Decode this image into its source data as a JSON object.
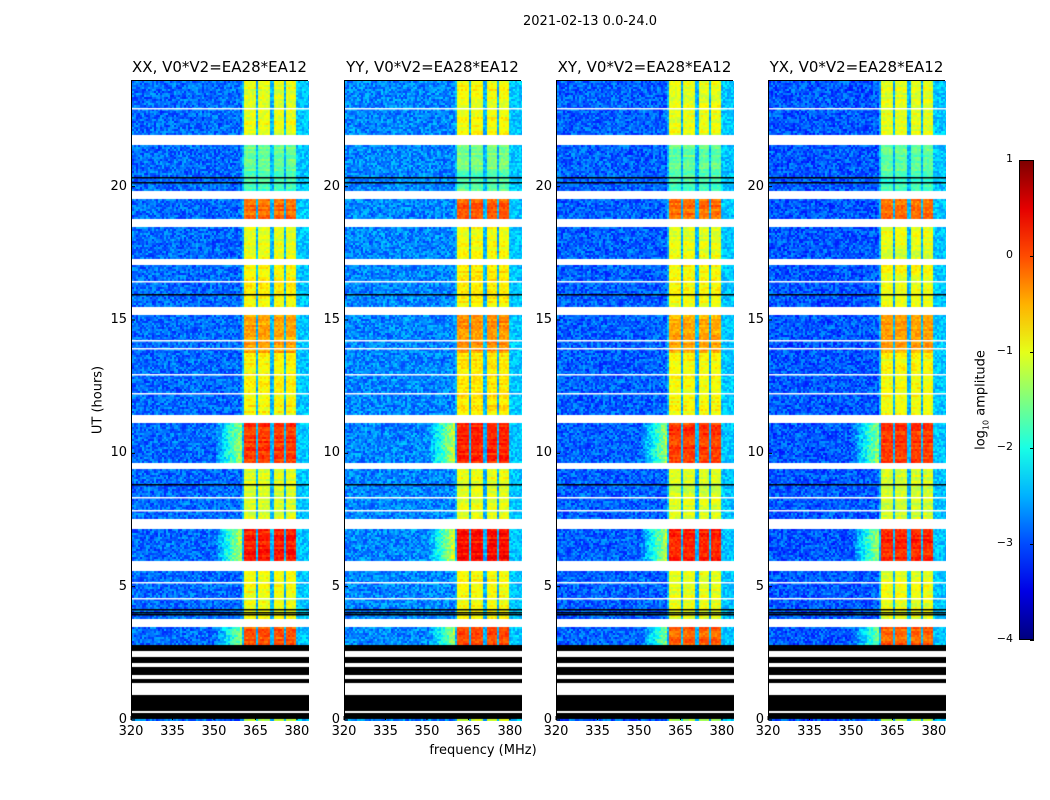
{
  "chart_data": {
    "type": "heatmap",
    "title": "2021-02-13 0.0-24.0",
    "xlabel": "frequency (MHz)",
    "ylabel": "UT (hours)",
    "xlim": [
      320,
      384
    ],
    "ylim": [
      0,
      24
    ],
    "xticks": [
      "320",
      "335",
      "350",
      "365",
      "380"
    ],
    "yticks": [
      "0",
      "5",
      "10",
      "15",
      "20"
    ],
    "colorbar": {
      "label_prefix": "log",
      "label_sub": "10",
      "label_suffix": " amplitude",
      "range": [
        -4,
        1
      ],
      "ticks": [
        "1",
        "0",
        "−1",
        "−2",
        "−3",
        "−4"
      ],
      "colormap": "jet"
    },
    "panels": [
      {
        "title": "XX, V0*V2=EA28*EA12",
        "offset": 0
      },
      {
        "title": "YY, V0*V2=EA28*EA12",
        "offset": 0.15
      },
      {
        "title": "XY, V0*V2=EA28*EA12",
        "offset": -0.05
      },
      {
        "title": "YX, V0*V2=EA28*EA12",
        "offset": -0.1
      }
    ],
    "background_log_amplitude": -3.0,
    "band_columns_mhz": [
      [
        360.4,
        365.1
      ],
      [
        365.8,
        370.2
      ],
      [
        371,
        375.2
      ],
      [
        376,
        379.6
      ]
    ],
    "time_segments": [
      {
        "t": [
          0,
          0.1
        ],
        "kind": "data",
        "level": -1.2
      },
      {
        "t": [
          0.1,
          0.3
        ],
        "kind": "black"
      },
      {
        "t": [
          0.3,
          0.35
        ],
        "kind": "white"
      },
      {
        "t": [
          0.35,
          1.0
        ],
        "kind": "black"
      },
      {
        "t": [
          1.0,
          1.4
        ],
        "kind": "white"
      },
      {
        "t": [
          1.4,
          1.55
        ],
        "kind": "black"
      },
      {
        "t": [
          1.55,
          1.7
        ],
        "kind": "white"
      },
      {
        "t": [
          1.7,
          2.0
        ],
        "kind": "black"
      },
      {
        "t": [
          2.0,
          2.2
        ],
        "kind": "white"
      },
      {
        "t": [
          2.2,
          2.4
        ],
        "kind": "black"
      },
      {
        "t": [
          2.4,
          2.6
        ],
        "kind": "white"
      },
      {
        "t": [
          2.6,
          2.85
        ],
        "kind": "black"
      },
      {
        "t": [
          2.85,
          3.55
        ],
        "kind": "data",
        "level": 0.1
      },
      {
        "t": [
          3.55,
          3.8
        ],
        "kind": "white"
      },
      {
        "t": [
          3.8,
          5.6
        ],
        "kind": "data",
        "level": -0.9
      },
      {
        "t": [
          5.6,
          6.0
        ],
        "kind": "white"
      },
      {
        "t": [
          6.0,
          7.2
        ],
        "kind": "data",
        "level": 0.45
      },
      {
        "t": [
          7.2,
          7.6
        ],
        "kind": "white"
      },
      {
        "t": [
          7.6,
          9.45
        ],
        "kind": "data",
        "level": -1.0
      },
      {
        "t": [
          9.45,
          9.7
        ],
        "kind": "white"
      },
      {
        "t": [
          9.7,
          11.2
        ],
        "kind": "data",
        "level": 0.3
      },
      {
        "t": [
          11.2,
          11.45
        ],
        "kind": "white"
      },
      {
        "t": [
          11.45,
          13.8
        ],
        "kind": "data",
        "level": -0.8
      },
      {
        "t": [
          13.8,
          15.2
        ],
        "kind": "data",
        "level": -0.3
      },
      {
        "t": [
          15.2,
          15.5
        ],
        "kind": "white"
      },
      {
        "t": [
          15.5,
          17.1
        ],
        "kind": "data",
        "level": -0.8
      },
      {
        "t": [
          17.1,
          17.3
        ],
        "kind": "white"
      },
      {
        "t": [
          17.3,
          18.5
        ],
        "kind": "data",
        "level": -0.9
      },
      {
        "t": [
          18.5,
          18.8
        ],
        "kind": "white"
      },
      {
        "t": [
          18.8,
          19.6
        ],
        "kind": "data",
        "level": 0.0
      },
      {
        "t": [
          19.6,
          19.9
        ],
        "kind": "white"
      },
      {
        "t": [
          19.9,
          20.6
        ],
        "kind": "data",
        "level": -1.8
      },
      {
        "t": [
          20.6,
          21.6
        ],
        "kind": "data",
        "level": -1.6
      },
      {
        "t": [
          21.6,
          22.0
        ],
        "kind": "white"
      },
      {
        "t": [
          22.0,
          24.0
        ],
        "kind": "data",
        "level": -0.9
      }
    ],
    "thin_lines": [
      {
        "t": 4.0,
        "kind": "black"
      },
      {
        "t": 4.1,
        "kind": "black"
      },
      {
        "t": 4.2,
        "kind": "black"
      },
      {
        "t": 4.6,
        "kind": "white"
      },
      {
        "t": 5.2,
        "kind": "white"
      },
      {
        "t": 7.9,
        "kind": "white"
      },
      {
        "t": 8.4,
        "kind": "white"
      },
      {
        "t": 8.9,
        "kind": "black"
      },
      {
        "t": 12.3,
        "kind": "white"
      },
      {
        "t": 13.0,
        "kind": "white"
      },
      {
        "t": 14.0,
        "kind": "white"
      },
      {
        "t": 14.3,
        "kind": "white"
      },
      {
        "t": 16.0,
        "kind": "black"
      },
      {
        "t": 16.5,
        "kind": "white"
      },
      {
        "t": 20.2,
        "kind": "black"
      },
      {
        "t": 20.4,
        "kind": "black"
      },
      {
        "t": 23.0,
        "kind": "white"
      }
    ]
  }
}
